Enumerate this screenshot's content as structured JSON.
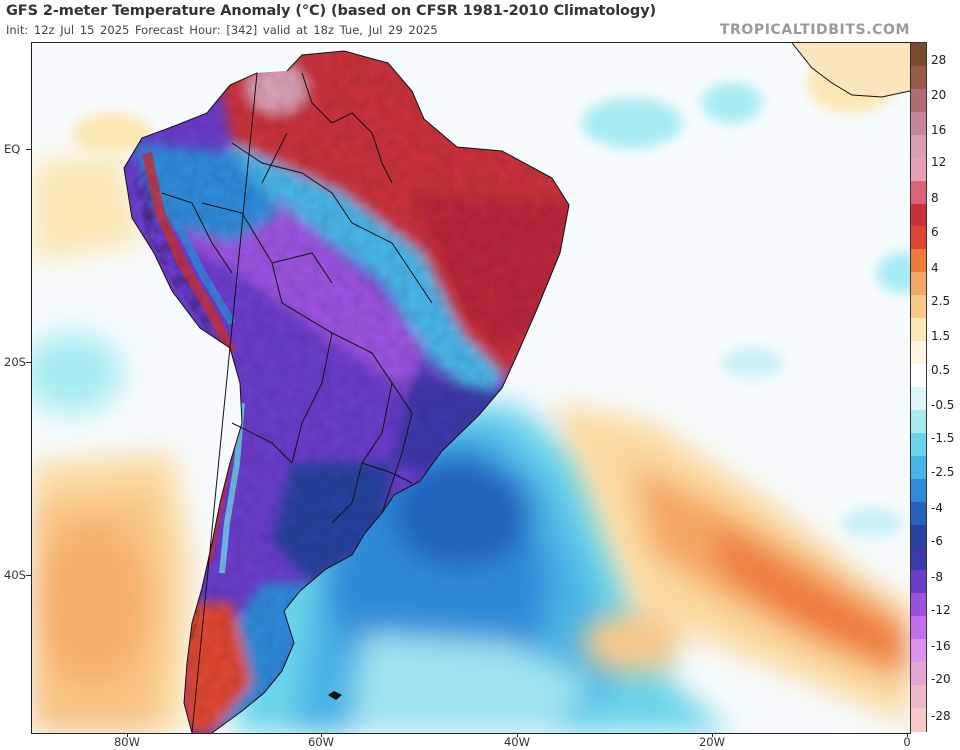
{
  "header": {
    "title": "GFS 2-meter Temperature Anomaly (°C) (based on CFSR 1981-2010 Climatology)",
    "subtitle": "Init: 12z Jul 15 2025   Forecast Hour: [342]   valid at 18z Tue, Jul 29 2025",
    "brand": "TROPICALTIDBITS.COM"
  },
  "axes": {
    "y_labels": [
      "EQ",
      "20S",
      "40S"
    ],
    "x_labels": [
      "80W",
      "60W",
      "40W",
      "20W",
      "0"
    ]
  },
  "colorbar": {
    "labels": [
      "28",
      "20",
      "16",
      "12",
      "8",
      "6",
      "4",
      "2.5",
      "1.5",
      "0.5",
      "-0.5",
      "-1.5",
      "-2.5",
      "-4",
      "-6",
      "-8",
      "-12",
      "-16",
      "-20",
      "-28"
    ],
    "colors": [
      "#7b4a2e",
      "#9a5a48",
      "#b06e74",
      "#c4849a",
      "#d89fb4",
      "#e8a0b6",
      "#d96478",
      "#c8303a",
      "#dd4630",
      "#ee7a3c",
      "#f4a664",
      "#f8c888",
      "#fde7b4",
      "#fff6df",
      "#ffffff",
      "#dcf6fa",
      "#a6ecf2",
      "#6cd4ea",
      "#48b4e6",
      "#2f8ad8",
      "#2462bd",
      "#28429e",
      "#3c38a8",
      "#6a3cc8",
      "#9a52de",
      "#c070ec",
      "#de92ee",
      "#e6a6d2",
      "#ecb8c8",
      "#f6cac6"
    ]
  },
  "map": {
    "region": "South America and South Atlantic",
    "continent_anomaly": {
      "amazon_and_west": "-8 to -16 (purple/violet)",
      "northern_brazil_guianas": "4 to 8 (red)",
      "andes_west_coast": "alternating warm and cold",
      "patagonia": "warm to near normal"
    },
    "ocean_anomaly": {
      "southwest_atlantic": "-1.5 to -4 (blue)",
      "south_atlantic_diagonal_band": "1.5 to 4 (orange)",
      "east_pacific_south": "0.5 to 2.5 (yellow-orange)"
    }
  }
}
